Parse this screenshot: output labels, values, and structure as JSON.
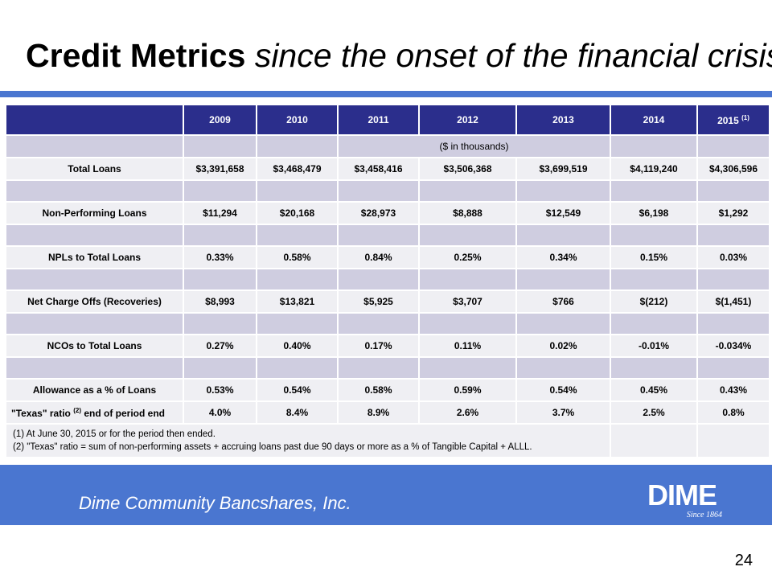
{
  "slide": {
    "title_bold": "Credit Metrics",
    "title_italic": "since the onset of the financial crisis",
    "page_number": "24"
  },
  "table": {
    "header": {
      "blank": "",
      "years": [
        "2009",
        "2010",
        "2011",
        "2012",
        "2013",
        "2014",
        "2015"
      ],
      "last_year_footnote": "(1)"
    },
    "units_note": "($ in thousands)",
    "rows": [
      {
        "label": "Total Loans",
        "values": [
          "$3,391,658",
          "$3,468,479",
          "$3,458,416",
          "$3,506,368",
          "$3,699,519",
          "$4,119,240",
          "$4,306,596"
        ]
      },
      {
        "label": "Non-Performing Loans",
        "values": [
          "$11,294",
          "$20,168",
          "$28,973",
          "$8,888",
          "$12,549",
          "$6,198",
          "$1,292"
        ]
      },
      {
        "label": "NPLs to Total Loans",
        "values": [
          "0.33%",
          "0.58%",
          "0.84%",
          "0.25%",
          "0.34%",
          "0.15%",
          "0.03%"
        ]
      },
      {
        "label": "Net Charge Offs (Recoveries)",
        "values": [
          "$8,993",
          "$13,821",
          "$5,925",
          "$3,707",
          "$766",
          "$(212)",
          "$(1,451)"
        ]
      },
      {
        "label": "NCOs to Total Loans",
        "values": [
          "0.27%",
          "0.40%",
          "0.17%",
          "0.11%",
          "0.02%",
          "-0.01%",
          "-0.034%"
        ]
      },
      {
        "label": "Allowance as a % of Loans",
        "values": [
          "0.53%",
          "0.54%",
          "0.58%",
          "0.59%",
          "0.54%",
          "0.45%",
          "0.43%"
        ]
      }
    ],
    "texas_row": {
      "label_before": "\"Texas\" ratio",
      "label_sup": "(2)",
      "label_after": "end of period end",
      "values": [
        "4.0%",
        "8.4%",
        "8.9%",
        "2.6%",
        "3.7%",
        "2.5%",
        "0.8%"
      ]
    },
    "notes": [
      "(1) At June 30, 2015 or for the period then ended.",
      "(2) \"Texas\" ratio = sum of non-performing assets + accruing loans past due 90 days or more as a % of Tangible Capital + ALLL."
    ]
  },
  "footer": {
    "company": "Dime Community Bancshares, Inc.",
    "logo_text": "DIME",
    "logo_since": "Since 1864"
  },
  "colors": {
    "accent_blue": "#4a76d0",
    "header_navy": "#2b2e8c",
    "row_light": "#efeff3",
    "row_shade": "#cfcde0"
  }
}
